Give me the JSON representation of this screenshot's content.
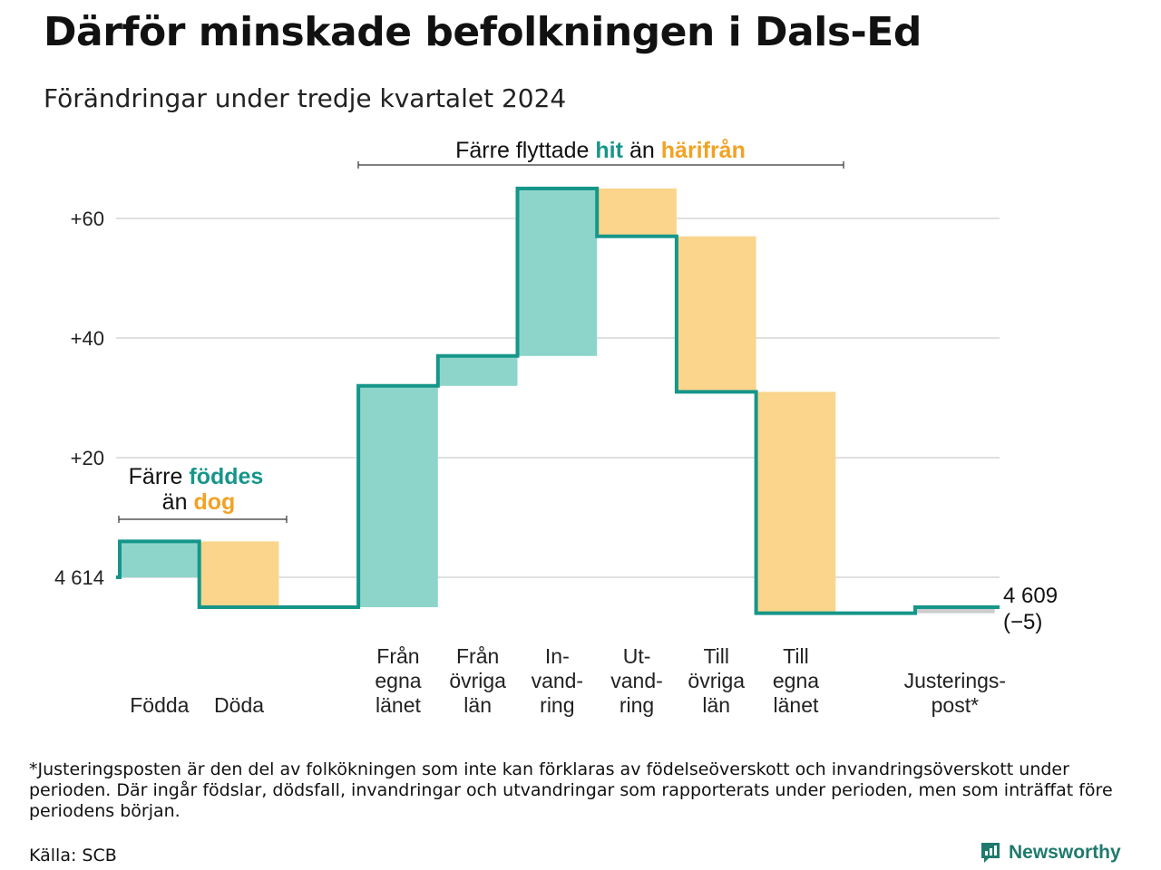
{
  "title": "Därför minskade befolkningen i Dals-Ed",
  "subtitle": "Förändringar under tredje kvartalet 2024",
  "colors": {
    "increase": "#8dd5cb",
    "decrease": "#fad58b",
    "line": "#16968a",
    "adjust": "#cccccc",
    "accent_teal": "#16968a",
    "accent_orange": "#f2a224",
    "grid": "#e0e0e0"
  },
  "annotations": {
    "migration": {
      "lead": "Färre flyttade",
      "hit": "hit",
      "mid": "än",
      "harifran": "härifrån"
    },
    "births": {
      "lead": "Färre",
      "foddes": "föddes",
      "an": "än",
      "dog": "dog"
    }
  },
  "chart_data": {
    "type": "waterfall",
    "start_label": "4 614",
    "end_value_label": "4 609",
    "end_change_label": "(−5)",
    "y_ticks": [
      {
        "value": 20,
        "label": "+20"
      },
      {
        "value": 40,
        "label": "+40"
      },
      {
        "value": 60,
        "label": "+60"
      }
    ],
    "ylim": [
      -7,
      67
    ],
    "steps": [
      {
        "label_lines": [
          "Födda"
        ],
        "start": 0,
        "end": 6,
        "kind": "increase"
      },
      {
        "label_lines": [
          "Döda"
        ],
        "start": 6,
        "end": -5,
        "kind": "decrease"
      },
      {
        "label_lines": [],
        "start": -5,
        "end": -5,
        "kind": "gap"
      },
      {
        "label_lines": [
          "Från",
          "egna",
          "länet"
        ],
        "start": -5,
        "end": 32,
        "kind": "increase"
      },
      {
        "label_lines": [
          "Från",
          "övriga",
          "län"
        ],
        "start": 32,
        "end": 37,
        "kind": "increase"
      },
      {
        "label_lines": [
          "In-",
          "vand-",
          "ring"
        ],
        "start": 37,
        "end": 65,
        "kind": "increase"
      },
      {
        "label_lines": [
          "Ut-",
          "vand-",
          "ring"
        ],
        "start": 65,
        "end": 57,
        "kind": "decrease"
      },
      {
        "label_lines": [
          "Till",
          "övriga",
          "län"
        ],
        "start": 57,
        "end": 31,
        "kind": "decrease"
      },
      {
        "label_lines": [
          "Till",
          "egna",
          "länet"
        ],
        "start": 31,
        "end": -6,
        "kind": "decrease"
      },
      {
        "label_lines": [],
        "start": -6,
        "end": -6,
        "kind": "gap"
      },
      {
        "label_lines": [
          "Justerings-",
          "post*"
        ],
        "start": -6,
        "end": -5,
        "kind": "adjust"
      }
    ]
  },
  "footnote": "*Justeringsposten är den del av folkökningen som inte kan förklaras av födelseöverskott och invandringsöverskott under perioden. Där ingår födslar, dödsfall, invandringar och utvandringar som rapporterats under perioden, men som inträffat före periodens början.",
  "source": "Källa: SCB",
  "logo_text": "Newsworthy"
}
